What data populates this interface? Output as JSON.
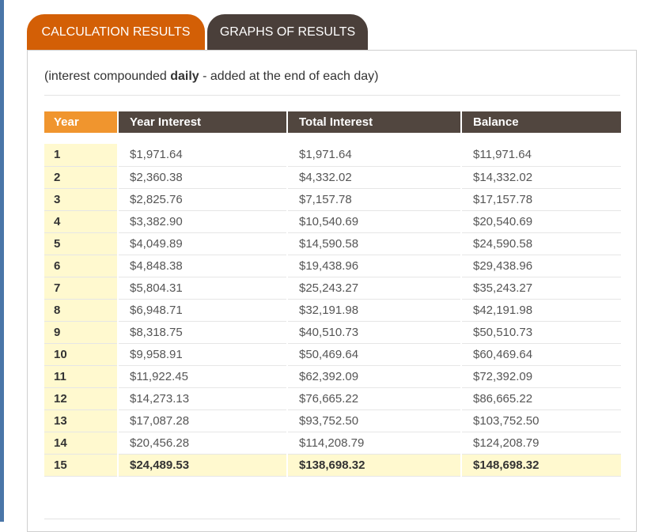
{
  "tabs": {
    "calculation": "CALCULATION RESULTS",
    "graphs": "GRAPHS OF RESULTS"
  },
  "note": {
    "prefix": "(interest compounded ",
    "bold": "daily",
    "suffix": " - added at the end of each day)"
  },
  "table": {
    "headers": [
      "Year",
      "Year Interest",
      "Total Interest",
      "Balance"
    ],
    "rows": [
      [
        "1",
        "$1,971.64",
        "$1,971.64",
        "$11,971.64"
      ],
      [
        "2",
        "$2,360.38",
        "$4,332.02",
        "$14,332.02"
      ],
      [
        "3",
        "$2,825.76",
        "$7,157.78",
        "$17,157.78"
      ],
      [
        "4",
        "$3,382.90",
        "$10,540.69",
        "$20,540.69"
      ],
      [
        "5",
        "$4,049.89",
        "$14,590.58",
        "$24,590.58"
      ],
      [
        "6",
        "$4,848.38",
        "$19,438.96",
        "$29,438.96"
      ],
      [
        "7",
        "$5,804.31",
        "$25,243.27",
        "$35,243.27"
      ],
      [
        "8",
        "$6,948.71",
        "$32,191.98",
        "$42,191.98"
      ],
      [
        "9",
        "$8,318.75",
        "$40,510.73",
        "$50,510.73"
      ],
      [
        "10",
        "$9,958.91",
        "$50,469.64",
        "$60,469.64"
      ],
      [
        "11",
        "$11,922.45",
        "$62,392.09",
        "$72,392.09"
      ],
      [
        "12",
        "$14,273.13",
        "$76,665.22",
        "$86,665.22"
      ],
      [
        "13",
        "$17,087.28",
        "$93,752.50",
        "$103,752.50"
      ],
      [
        "14",
        "$20,456.28",
        "$114,208.79",
        "$124,208.79"
      ],
      [
        "15",
        "$24,489.53",
        "$138,698.32",
        "$148,698.32"
      ]
    ]
  },
  "colors": {
    "active_tab": "#d35f06",
    "inactive_tab": "#4a3f3a",
    "year_header": "#f0952e",
    "header": "#51463f",
    "highlight": "#fff9cf"
  }
}
